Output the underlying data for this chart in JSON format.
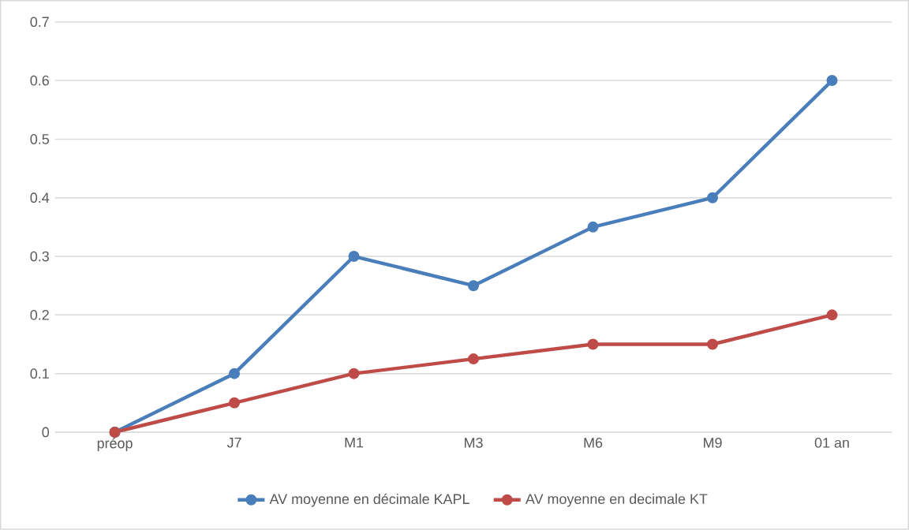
{
  "chart_data": {
    "type": "line",
    "categories": [
      "préop",
      "J7",
      "M1",
      "M3",
      "M6",
      "M9",
      "01  an"
    ],
    "series": [
      {
        "name": "AV moyenne en décimale KAPL",
        "color": "#4a7ebb",
        "values": [
          0,
          0.1,
          0.3,
          0.25,
          0.35,
          0.4,
          0.6
        ]
      },
      {
        "name": "AV moyenne en decimale KT",
        "color": "#be4b48",
        "values": [
          0,
          0.05,
          0.1,
          0.125,
          0.15,
          0.15,
          0.2
        ]
      }
    ],
    "ylim": [
      0,
      0.7
    ],
    "yticks": [
      0,
      0.1,
      0.2,
      0.3,
      0.4,
      0.5,
      0.6,
      0.7
    ],
    "grid": "y",
    "legend": "bottom",
    "marker": "circle",
    "line_style": "solid"
  }
}
